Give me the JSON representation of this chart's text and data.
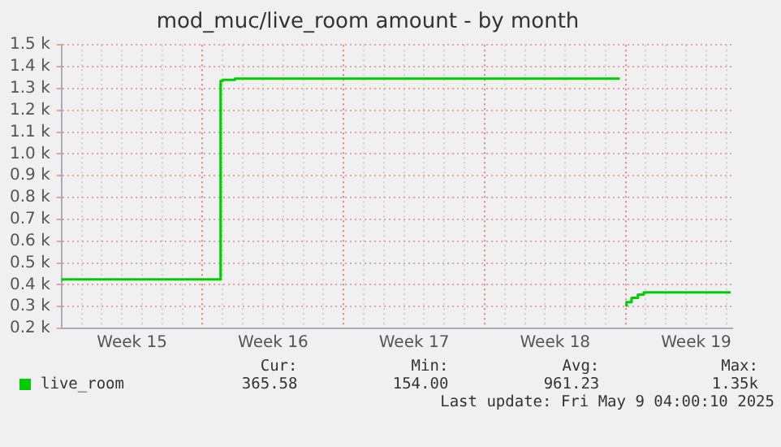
{
  "chart_data": {
    "type": "step",
    "title": "mod_muc/live_room amount - by month",
    "xlim": [
      "2025-04-07",
      "2025-05-10T07:00"
    ],
    "xticks": [
      {
        "value": "2025-04-07",
        "label": null
      },
      {
        "value": "2025-04-08",
        "label": null
      },
      {
        "value": "2025-04-09",
        "label": null
      },
      {
        "value": "2025-04-10",
        "label": null
      },
      {
        "value": "2025-04-10T12:00",
        "label": "Week 15"
      },
      {
        "value": "2025-04-11",
        "label": null
      },
      {
        "value": "2025-04-12",
        "label": null
      },
      {
        "value": "2025-04-13",
        "label": null
      },
      {
        "value": "2025-04-14",
        "label": null
      },
      {
        "value": "2025-04-15",
        "label": null
      },
      {
        "value": "2025-04-16",
        "label": null
      },
      {
        "value": "2025-04-17",
        "label": null
      },
      {
        "value": "2025-04-17T12:00",
        "label": "Week 16"
      },
      {
        "value": "2025-04-18",
        "label": null
      },
      {
        "value": "2025-04-19",
        "label": null
      },
      {
        "value": "2025-04-20",
        "label": null
      },
      {
        "value": "2025-04-21",
        "label": null
      },
      {
        "value": "2025-04-22",
        "label": null
      },
      {
        "value": "2025-04-23",
        "label": null
      },
      {
        "value": "2025-04-24",
        "label": null
      },
      {
        "value": "2025-04-24T12:00",
        "label": "Week 17"
      },
      {
        "value": "2025-04-25",
        "label": null
      },
      {
        "value": "2025-04-26",
        "label": null
      },
      {
        "value": "2025-04-27",
        "label": null
      },
      {
        "value": "2025-04-28",
        "label": null
      },
      {
        "value": "2025-04-29",
        "label": null
      },
      {
        "value": "2025-04-30",
        "label": null
      },
      {
        "value": "2025-05-01",
        "label": null
      },
      {
        "value": "2025-05-01T12:00",
        "label": "Week 18"
      },
      {
        "value": "2025-05-02",
        "label": null
      },
      {
        "value": "2025-05-03",
        "label": null
      },
      {
        "value": "2025-05-04",
        "label": null
      },
      {
        "value": "2025-05-05",
        "label": null
      },
      {
        "value": "2025-05-06",
        "label": null
      },
      {
        "value": "2025-05-07",
        "label": null
      },
      {
        "value": "2025-05-08",
        "label": null
      },
      {
        "value": "2025-05-08T12:00",
        "label": "Week 19"
      },
      {
        "value": "2025-05-09",
        "label": null
      },
      {
        "value": "2025-05-10",
        "label": null
      }
    ],
    "ylim": [
      200,
      1500
    ],
    "yticks": [
      {
        "value": 200,
        "label": "0.2 k"
      },
      {
        "value": 300,
        "label": "0.3 k"
      },
      {
        "value": 400,
        "label": "0.4 k"
      },
      {
        "value": 500,
        "label": "0.5 k"
      },
      {
        "value": 600,
        "label": "0.6 k"
      },
      {
        "value": 700,
        "label": "0.7 k"
      },
      {
        "value": 800,
        "label": "0.8 k"
      },
      {
        "value": 900,
        "label": "0.9 k"
      },
      {
        "value": 1000,
        "label": "1.0 k"
      },
      {
        "value": 1100,
        "label": "1.1 k"
      },
      {
        "value": 1200,
        "label": "1.2 k"
      },
      {
        "value": 1300,
        "label": "1.3 k"
      },
      {
        "value": 1400,
        "label": "1.4 k"
      },
      {
        "value": 1500,
        "label": "1.5 k"
      }
    ],
    "grid": true,
    "legend": "bottom left",
    "series": [
      {
        "name": "live_room",
        "color": "#00cc00",
        "x": [
          "2025-04-07",
          "2025-04-09T19:00",
          "2025-04-14T21:30",
          "2025-04-15",
          "2025-04-15T14:30",
          "2025-04-28T07:00",
          "2025-05-04T17:00",
          "2025-05-04T21:30",
          "2025-05-05T01:00",
          "2025-05-05T07:00",
          "2025-05-05T14:30",
          "2025-05-05T21:30",
          "2025-05-07",
          "2025-05-10T05:00"
        ],
        "values": [
          415,
          425,
          425,
          1335,
          1340,
          1345,
          1345,
          null,
          300,
          320,
          340,
          355,
          365,
          365
        ]
      }
    ],
    "annotations": [
      "Cur:",
      "Min:",
      "Avg:",
      "Max:",
      "365.58",
      "154.00",
      "961.23",
      "1.35k",
      "Last update: Fri May  9 04:00:10 2025"
    ]
  }
}
